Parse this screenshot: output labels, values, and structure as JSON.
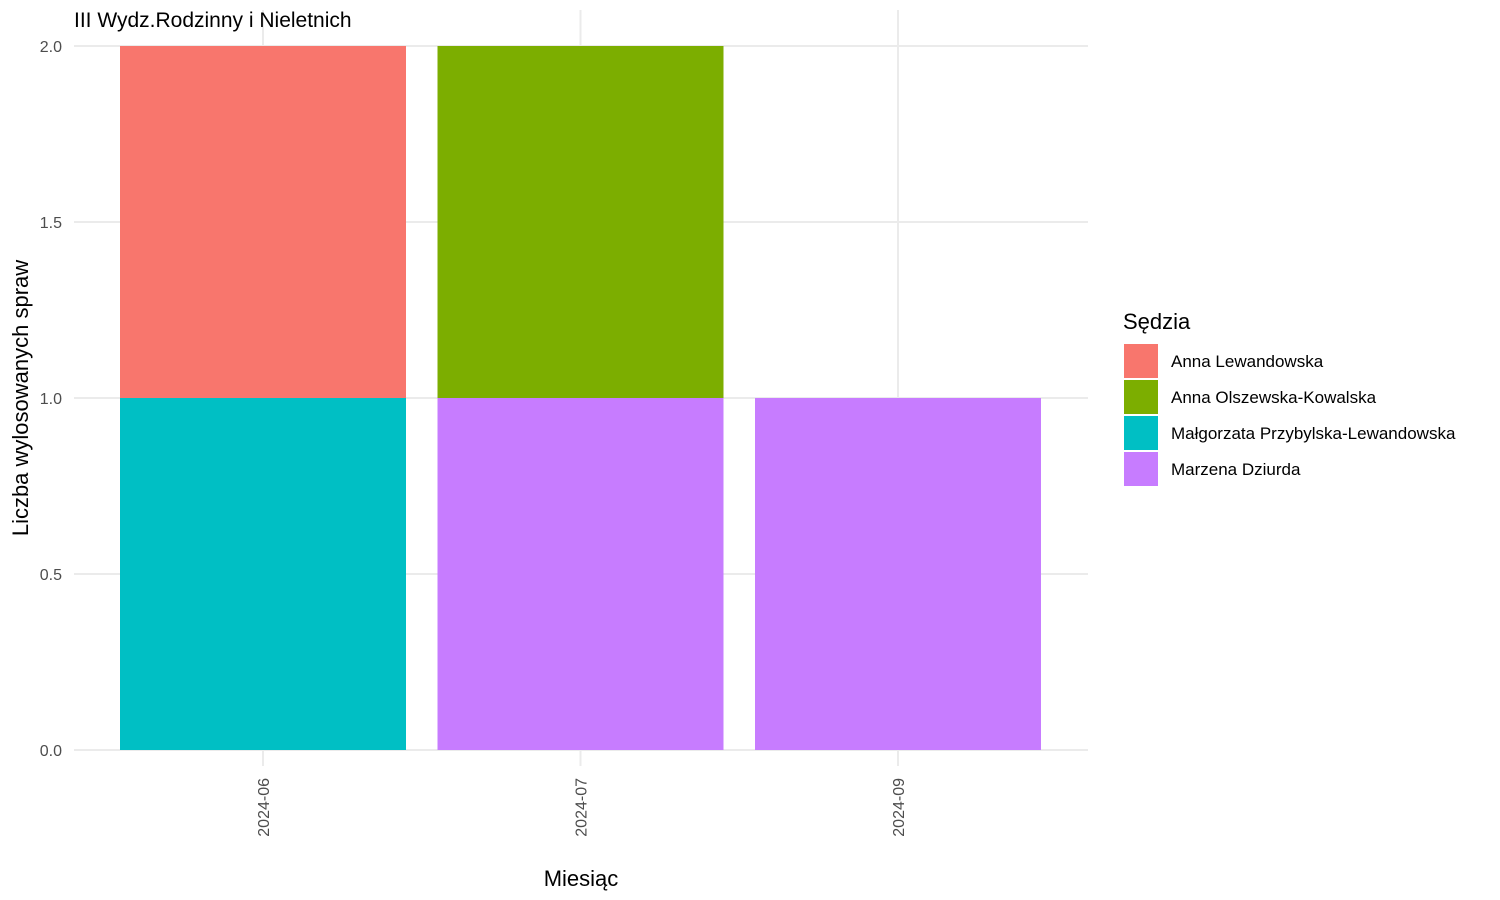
{
  "chart_data": {
    "type": "bar",
    "stacked": true,
    "title": "III Wydz.Rodzinny i Nieletnich",
    "xlabel": "Miesiąc",
    "ylabel": "Liczba wylosowanych spraw",
    "categories": [
      "2024-06",
      "2024-07",
      "2024-09"
    ],
    "ylim": [
      0,
      2
    ],
    "yticks": [
      "0.0",
      "0.5",
      "1.0",
      "1.5",
      "2.0"
    ],
    "grid": true,
    "legend": {
      "title": "Sędzia",
      "position": "right"
    },
    "series": [
      {
        "name": "Małgorzata Przybylska-Lewandowska",
        "color": "#00BFC4",
        "values": [
          1,
          0,
          0
        ]
      },
      {
        "name": "Marzena Dziurda",
        "color": "#C77CFF",
        "values": [
          0,
          1,
          1
        ]
      },
      {
        "name": "Anna Lewandowska",
        "color": "#F8766D",
        "values": [
          1,
          0,
          0
        ]
      },
      {
        "name": "Anna Olszewska-Kowalska",
        "color": "#7CAE00",
        "values": [
          0,
          1,
          0
        ]
      }
    ],
    "legend_order": [
      "Anna Lewandowska",
      "Anna Olszewska-Kowalska",
      "Małgorzata Przybylska-Lewandowska",
      "Marzena Dziurda"
    ]
  }
}
